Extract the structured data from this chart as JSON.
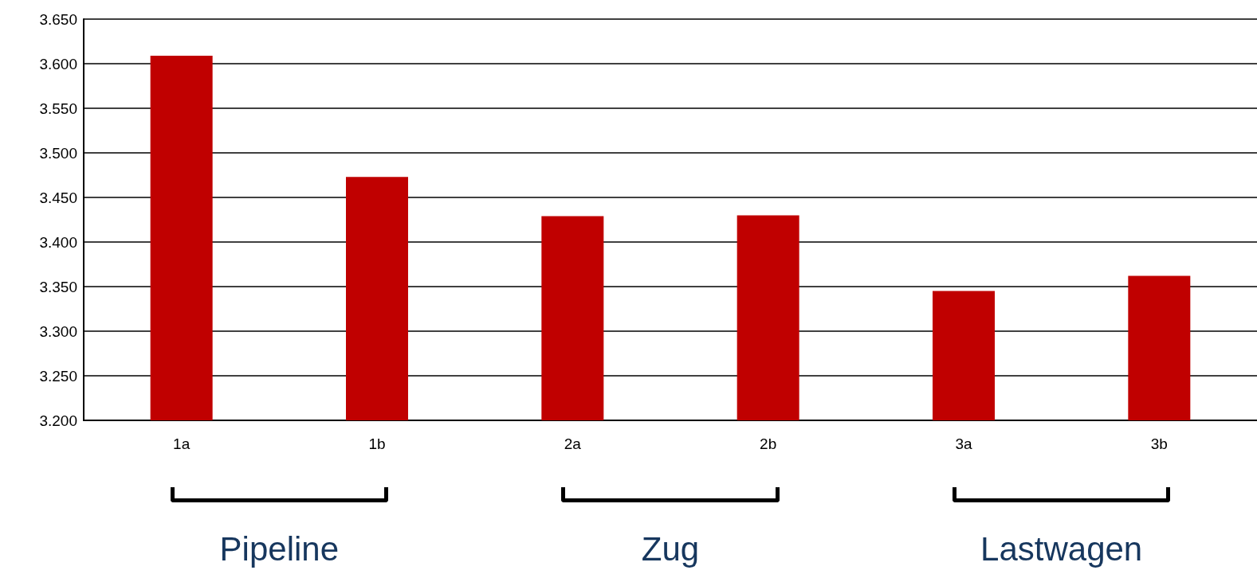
{
  "chart_data": {
    "type": "bar",
    "categories": [
      "1a",
      "1b",
      "2a",
      "2b",
      "3a",
      "3b"
    ],
    "values": [
      3609,
      3473,
      3429,
      3430,
      3345,
      3362
    ],
    "color": "#c00000",
    "ylim": [
      3200,
      3650
    ],
    "yticks": [
      {
        "value": 3200,
        "label": "3.200"
      },
      {
        "value": 3250,
        "label": "3.250"
      },
      {
        "value": 3300,
        "label": "3.300"
      },
      {
        "value": 3350,
        "label": "3.350"
      },
      {
        "value": 3400,
        "label": "3.400"
      },
      {
        "value": 3450,
        "label": "3.450"
      },
      {
        "value": 3500,
        "label": "3.500"
      },
      {
        "value": 3550,
        "label": "3.550"
      },
      {
        "value": 3600,
        "label": "3.600"
      },
      {
        "value": 3650,
        "label": "3.650"
      }
    ],
    "grid": "y",
    "annotations": [
      "Pipeline",
      "Zug",
      "Lastwagen"
    ]
  }
}
